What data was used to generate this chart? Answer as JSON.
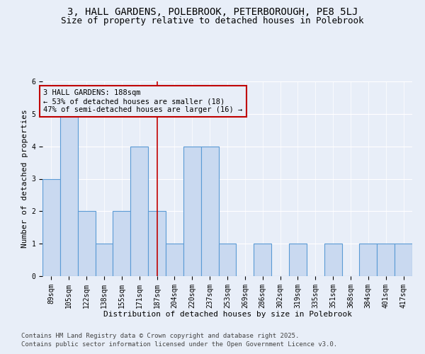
{
  "title1": "3, HALL GARDENS, POLEBROOK, PETERBOROUGH, PE8 5LJ",
  "title2": "Size of property relative to detached houses in Polebrook",
  "xlabel": "Distribution of detached houses by size in Polebrook",
  "ylabel": "Number of detached properties",
  "footnote1": "Contains HM Land Registry data © Crown copyright and database right 2025.",
  "footnote2": "Contains public sector information licensed under the Open Government Licence v3.0.",
  "bins": [
    "89sqm",
    "105sqm",
    "122sqm",
    "138sqm",
    "155sqm",
    "171sqm",
    "187sqm",
    "204sqm",
    "220sqm",
    "237sqm",
    "253sqm",
    "269sqm",
    "286sqm",
    "302sqm",
    "319sqm",
    "335sqm",
    "351sqm",
    "368sqm",
    "384sqm",
    "401sqm",
    "417sqm"
  ],
  "counts": [
    3,
    5,
    2,
    1,
    2,
    4,
    2,
    1,
    4,
    4,
    1,
    0,
    1,
    0,
    1,
    0,
    1,
    0,
    1,
    1,
    1
  ],
  "bar_color": "#c9d9f0",
  "bar_edge_color": "#5b9bd5",
  "vline_x_index": 6,
  "vline_color": "#c00000",
  "annotation_text": "3 HALL GARDENS: 188sqm\n← 53% of detached houses are smaller (18)\n47% of semi-detached houses are larger (16) →",
  "ylim": [
    0,
    6
  ],
  "yticks": [
    0,
    1,
    2,
    3,
    4,
    5,
    6
  ],
  "background_color": "#e8eef8",
  "grid_color": "#ffffff",
  "title_fontsize": 10,
  "subtitle_fontsize": 9,
  "axis_label_fontsize": 8,
  "tick_fontsize": 7,
  "annotation_fontsize": 7.5,
  "footnote_fontsize": 6.5
}
